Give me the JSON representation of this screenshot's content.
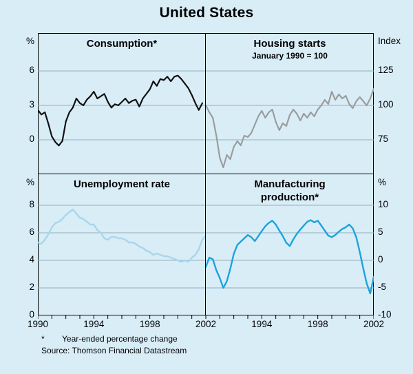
{
  "title": "United States",
  "colors": {
    "background": "#d9edf7",
    "grid": "#93aebc",
    "frame": "#000000",
    "consumption_line": "#111111",
    "housing_line": "#9c9c9c",
    "unemployment_line": "#a8d6ea",
    "manufacturing_line": "#1ba3dc"
  },
  "footnotes": {
    "symbol": "*",
    "text": "Year-ended percentage change",
    "source": "Source: Thomson Financial Datastream"
  },
  "chart_data": [
    {
      "id": "consumption",
      "type": "line",
      "title": "Consumption*",
      "unit": {
        "side": "left",
        "text": "%"
      },
      "color": "#111111",
      "line_width": 2.2,
      "xlim": [
        1990,
        2002
      ],
      "ylim": [
        -3,
        9.3
      ],
      "grid": true,
      "yticks": {
        "side": "left",
        "values": [
          0,
          3,
          6
        ],
        "labels": [
          "0",
          "3",
          "6"
        ]
      },
      "xticks": {
        "values": [
          1990,
          1994,
          1998,
          2002
        ],
        "labels": [
          "1990",
          "1994",
          "1998",
          "2002"
        ],
        "show_labels": false
      },
      "x_start": 1990,
      "x_step": 0.25,
      "values": [
        2.6,
        2.2,
        2.4,
        1.4,
        0.3,
        -0.2,
        -0.5,
        -0.1,
        1.6,
        2.4,
        2.8,
        3.6,
        3.2,
        3.0,
        3.5,
        3.8,
        4.2,
        3.6,
        3.8,
        4.0,
        3.3,
        2.8,
        3.1,
        3.0,
        3.3,
        3.6,
        3.2,
        3.4,
        3.5,
        2.9,
        3.6,
        4.0,
        4.4,
        5.1,
        4.7,
        5.3,
        5.2,
        5.5,
        5.1,
        5.5,
        5.6,
        5.3,
        4.9,
        4.5,
        3.9,
        3.2,
        2.6,
        3.2
      ]
    },
    {
      "id": "housing",
      "type": "line",
      "title": "Housing starts",
      "subtitle": "January 1990 = 100",
      "unit": {
        "side": "right",
        "text": "Index"
      },
      "color": "#9c9c9c",
      "line_width": 2.2,
      "xlim": [
        1990,
        2002
      ],
      "ylim": [
        50,
        152.5
      ],
      "grid": true,
      "yticks": {
        "side": "right",
        "values": [
          75,
          100,
          125
        ],
        "labels": [
          "75",
          "100",
          "125"
        ]
      },
      "xticks": {
        "values": [
          1994,
          1998,
          2002
        ],
        "labels": [
          "1994",
          "1998",
          "2002"
        ],
        "show_labels": false
      },
      "x_start": 1990,
      "x_step": 0.25,
      "values": [
        100,
        95,
        91,
        78,
        62,
        55,
        64,
        61,
        70,
        74,
        71,
        78,
        77,
        80,
        86,
        92,
        96,
        91,
        95,
        97,
        88,
        82,
        87,
        85,
        93,
        97,
        94,
        89,
        94,
        91,
        95,
        92,
        97,
        100,
        104,
        101,
        110,
        104,
        108,
        105,
        107,
        101,
        98,
        103,
        106,
        103,
        100,
        105,
        112
      ]
    },
    {
      "id": "unemployment",
      "type": "line",
      "title": "Unemployment rate",
      "unit": {
        "side": "left",
        "text": "%"
      },
      "color": "#a8d6ea",
      "line_width": 2.4,
      "xlim": [
        1990,
        2002
      ],
      "ylim": [
        0,
        10.25
      ],
      "grid": true,
      "yticks": {
        "side": "left",
        "values": [
          0,
          2,
          4,
          6,
          8
        ],
        "labels": [
          "0",
          "2",
          "4",
          "6",
          "8"
        ]
      },
      "xticks": {
        "values": [
          1990,
          1994,
          1998,
          2002
        ],
        "labels": [
          "1990",
          "1994",
          "1998",
          "2002"
        ],
        "show_labels": true
      },
      "x_start": 1990,
      "x_step": 0.25,
      "values": [
        5.3,
        5.2,
        5.5,
        5.9,
        6.4,
        6.7,
        6.8,
        7.0,
        7.3,
        7.5,
        7.7,
        7.4,
        7.1,
        7.0,
        6.8,
        6.6,
        6.6,
        6.2,
        6.0,
        5.6,
        5.5,
        5.7,
        5.7,
        5.6,
        5.6,
        5.5,
        5.3,
        5.3,
        5.2,
        5.0,
        4.9,
        4.7,
        4.6,
        4.4,
        4.5,
        4.4,
        4.3,
        4.3,
        4.2,
        4.1,
        4.0,
        3.9,
        4.0,
        3.9,
        4.2,
        4.4,
        4.8,
        5.5,
        5.8
      ]
    },
    {
      "id": "manufacturing",
      "type": "line",
      "title": "Manufacturing production*",
      "unit": {
        "side": "right",
        "text": "%"
      },
      "color": "#1ba3dc",
      "line_width": 2.4,
      "xlim": [
        1990,
        2002
      ],
      "ylim": [
        -10,
        15.625
      ],
      "grid": true,
      "yticks": {
        "side": "right",
        "values": [
          -10,
          -5,
          0,
          5,
          10
        ],
        "labels": [
          "-10",
          "-5",
          "0",
          "5",
          "10"
        ]
      },
      "xticks": {
        "values": [
          1994,
          1998,
          2002
        ],
        "labels": [
          "1994",
          "1998",
          "2002"
        ],
        "show_labels": true
      },
      "x_start": 1990,
      "x_step": 0.25,
      "values": [
        -1.2,
        0.5,
        0.2,
        -1.8,
        -3.2,
        -5.0,
        -3.8,
        -1.5,
        1.2,
        2.8,
        3.4,
        4.0,
        4.6,
        4.2,
        3.5,
        4.4,
        5.3,
        6.2,
        6.8,
        7.2,
        6.5,
        5.4,
        4.4,
        3.2,
        2.6,
        3.8,
        4.8,
        5.6,
        6.3,
        7.0,
        7.3,
        6.9,
        7.2,
        6.3,
        5.4,
        4.5,
        4.2,
        4.6,
        5.2,
        5.7,
        6.0,
        6.5,
        5.8,
        4.2,
        1.5,
        -1.5,
        -4.2,
        -6.0,
        -3.0
      ]
    }
  ]
}
